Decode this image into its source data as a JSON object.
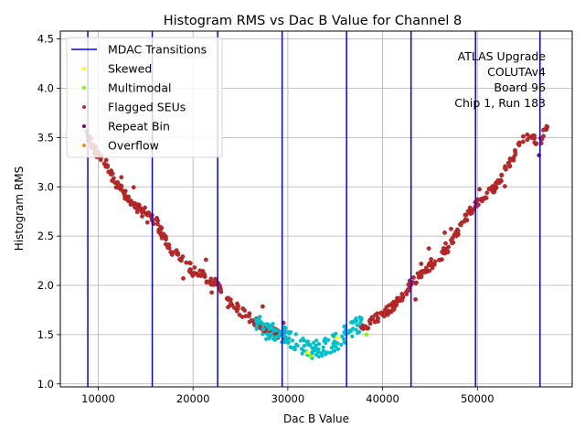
{
  "chart_data": {
    "type": "scatter",
    "title": "Histogram RMS vs Dac B Value for Channel 8",
    "xlabel": "Dac B Value",
    "ylabel": "Histogram RMS",
    "xlim": [
      6000,
      60000
    ],
    "ylim": [
      0.97,
      4.58
    ],
    "x_ticks": [
      10000,
      20000,
      30000,
      40000,
      50000
    ],
    "y_ticks": [
      1.0,
      1.5,
      2.0,
      2.5,
      3.0,
      3.5,
      4.0,
      4.5
    ],
    "grid": true,
    "legend_position": "top-left",
    "annotation": [
      "ATLAS Upgrade",
      "COLUTAv4",
      "Board 96",
      "Chip 1, Run 183"
    ],
    "mdac_transitions": [
      8900,
      15700,
      22600,
      29400,
      36200,
      43000,
      49800,
      56600
    ],
    "legend": [
      {
        "label": "MDAC Transitions",
        "kind": "line",
        "color": "#0000ff"
      },
      {
        "label": "Skewed",
        "kind": "point",
        "color": "#ffff00"
      },
      {
        "label": "Multimodal",
        "kind": "point",
        "color": "#7cfc00"
      },
      {
        "label": "Flagged SEUs",
        "kind": "point",
        "color": "#c0282a"
      },
      {
        "label": "Repeat Bin",
        "kind": "point",
        "color": "#800080"
      },
      {
        "label": "Overflow",
        "kind": "point",
        "color": "#ff8c00"
      }
    ],
    "colors": {
      "flagged": "#c0282a",
      "normal": "#00c0c8",
      "mdac": "#0000ff",
      "skewed": "#ffff00",
      "multimodal": "#7cfc00",
      "outline": "#8b1a1a"
    },
    "series": [
      {
        "name": "Flagged SEUs",
        "color": "#c0282a",
        "profile": [
          [
            8700,
            3.55
          ],
          [
            10000,
            3.32
          ],
          [
            11000,
            3.18
          ],
          [
            12000,
            3.02
          ],
          [
            13000,
            2.9
          ],
          [
            14000,
            2.8
          ],
          [
            15000,
            2.72
          ],
          [
            15600,
            2.68
          ],
          [
            16000,
            2.67
          ],
          [
            17000,
            2.47
          ],
          [
            18000,
            2.33
          ],
          [
            19000,
            2.24
          ],
          [
            20000,
            2.16
          ],
          [
            21000,
            2.1
          ],
          [
            22000,
            2.05
          ],
          [
            22600,
            2.0
          ],
          [
            23500,
            1.84
          ],
          [
            24500,
            1.78
          ],
          [
            25500,
            1.7
          ],
          [
            26500,
            1.63
          ],
          [
            27500,
            1.57
          ],
          [
            28500,
            1.52
          ],
          [
            29300,
            1.5
          ],
          [
            38000,
            1.58
          ],
          [
            39000,
            1.64
          ],
          [
            40000,
            1.7
          ],
          [
            41000,
            1.78
          ],
          [
            42000,
            1.88
          ],
          [
            43000,
            2.02
          ],
          [
            44000,
            2.12
          ],
          [
            45000,
            2.2
          ],
          [
            46000,
            2.28
          ],
          [
            47000,
            2.4
          ],
          [
            48000,
            2.55
          ],
          [
            49000,
            2.72
          ],
          [
            50000,
            2.85
          ],
          [
            51000,
            2.92
          ],
          [
            52000,
            3.02
          ],
          [
            53000,
            3.15
          ],
          [
            54000,
            3.35
          ],
          [
            55000,
            3.52
          ],
          [
            56500,
            3.45
          ],
          [
            57500,
            3.62
          ]
        ],
        "spread": 0.05,
        "x_range": [
          8700,
          57500
        ]
      },
      {
        "name": "Normal",
        "color": "#00c0c8",
        "profile": [
          [
            26500,
            1.65
          ],
          [
            27500,
            1.55
          ],
          [
            28500,
            1.52
          ],
          [
            29500,
            1.5
          ],
          [
            30500,
            1.45
          ],
          [
            31500,
            1.38
          ],
          [
            32500,
            1.35
          ],
          [
            33500,
            1.37
          ],
          [
            34500,
            1.4
          ],
          [
            35500,
            1.45
          ],
          [
            36500,
            1.55
          ],
          [
            37500,
            1.6
          ]
        ],
        "spread": 0.09,
        "x_range": [
          26500,
          38000
        ]
      }
    ],
    "highlight_points": [
      {
        "series": "Skewed",
        "x": 32100,
        "y": 1.32
      },
      {
        "series": "Multimodal",
        "x": 32400,
        "y": 1.28
      },
      {
        "series": "Skewed",
        "x": 35200,
        "y": 1.47
      },
      {
        "series": "Multimodal",
        "x": 38300,
        "y": 1.5
      },
      {
        "series": "Repeat Bin",
        "x": 56500,
        "y": 3.32
      }
    ]
  }
}
